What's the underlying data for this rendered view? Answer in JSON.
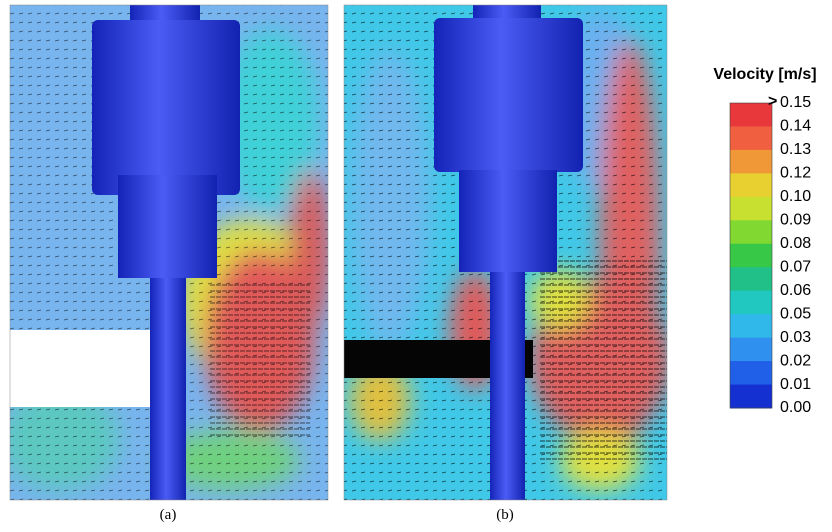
{
  "panels": [
    {
      "label": "(a)"
    },
    {
      "label": "(b)"
    }
  ],
  "colorbar": {
    "title": "Velocity [m/s]",
    "over_marker": ">",
    "ticks": [
      "0.15",
      "0.14",
      "0.13",
      "0.12",
      "0.10",
      "0.09",
      "0.08",
      "0.07",
      "0.06",
      "0.05",
      "0.03",
      "0.02",
      "0.01",
      "0.00"
    ]
  }
}
